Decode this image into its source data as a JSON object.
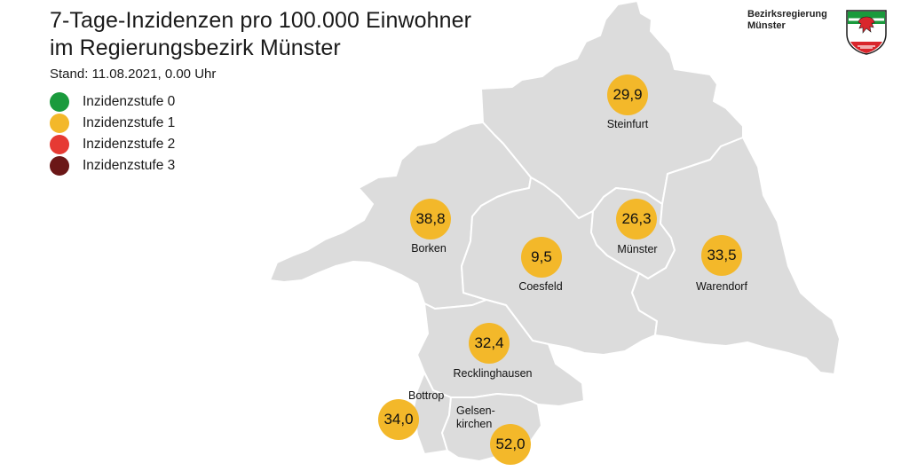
{
  "header": {
    "title_line1": "7-Tage-Inzidenzen pro 100.000 Einwohner",
    "title_line2": "im Regierungsbezirk Münster",
    "stand": "Stand: 11.08.2021, 0.00 Uhr"
  },
  "brand": {
    "line1": "Bezirksregierung",
    "line2": "Münster"
  },
  "crest": {
    "icon": "nrw-coat-of-arms-icon"
  },
  "legend": [
    {
      "label": "Inzidenzstufe 0",
      "color": "#1a9a3c"
    },
    {
      "label": "Inzidenzstufe 1",
      "color": "#f3b82a"
    },
    {
      "label": "Inzidenzstufe 2",
      "color": "#e63a33"
    },
    {
      "label": "Inzidenzstufe 3",
      "color": "#6b1717"
    }
  ],
  "map": {
    "region_fill": "#dcdcdc",
    "border_color": "#ffffff",
    "districts": {
      "steinfurt": {
        "name": "Steinfurt",
        "value": "29,9",
        "level": "Inzidenzstufe 1"
      },
      "borken": {
        "name": "Borken",
        "value": "38,8",
        "level": "Inzidenzstufe 1"
      },
      "coesfeld": {
        "name": "Coesfeld",
        "value": "9,5",
        "level": "Inzidenzstufe 1"
      },
      "muenster": {
        "name": "Münster",
        "value": "26,3",
        "level": "Inzidenzstufe 1"
      },
      "warendorf": {
        "name": "Warendorf",
        "value": "33,5",
        "level": "Inzidenzstufe 1"
      },
      "recklinghausen": {
        "name": "Recklinghausen",
        "value": "32,4",
        "level": "Inzidenzstufe 1"
      },
      "bottrop": {
        "name": "Bottrop",
        "value": "34,0",
        "level": "Inzidenzstufe 1"
      },
      "gelsenkirchen": {
        "name_line1": "Gelsen-",
        "name_line2": "kirchen",
        "value": "52,0",
        "level": "Inzidenzstufe 1"
      }
    }
  }
}
